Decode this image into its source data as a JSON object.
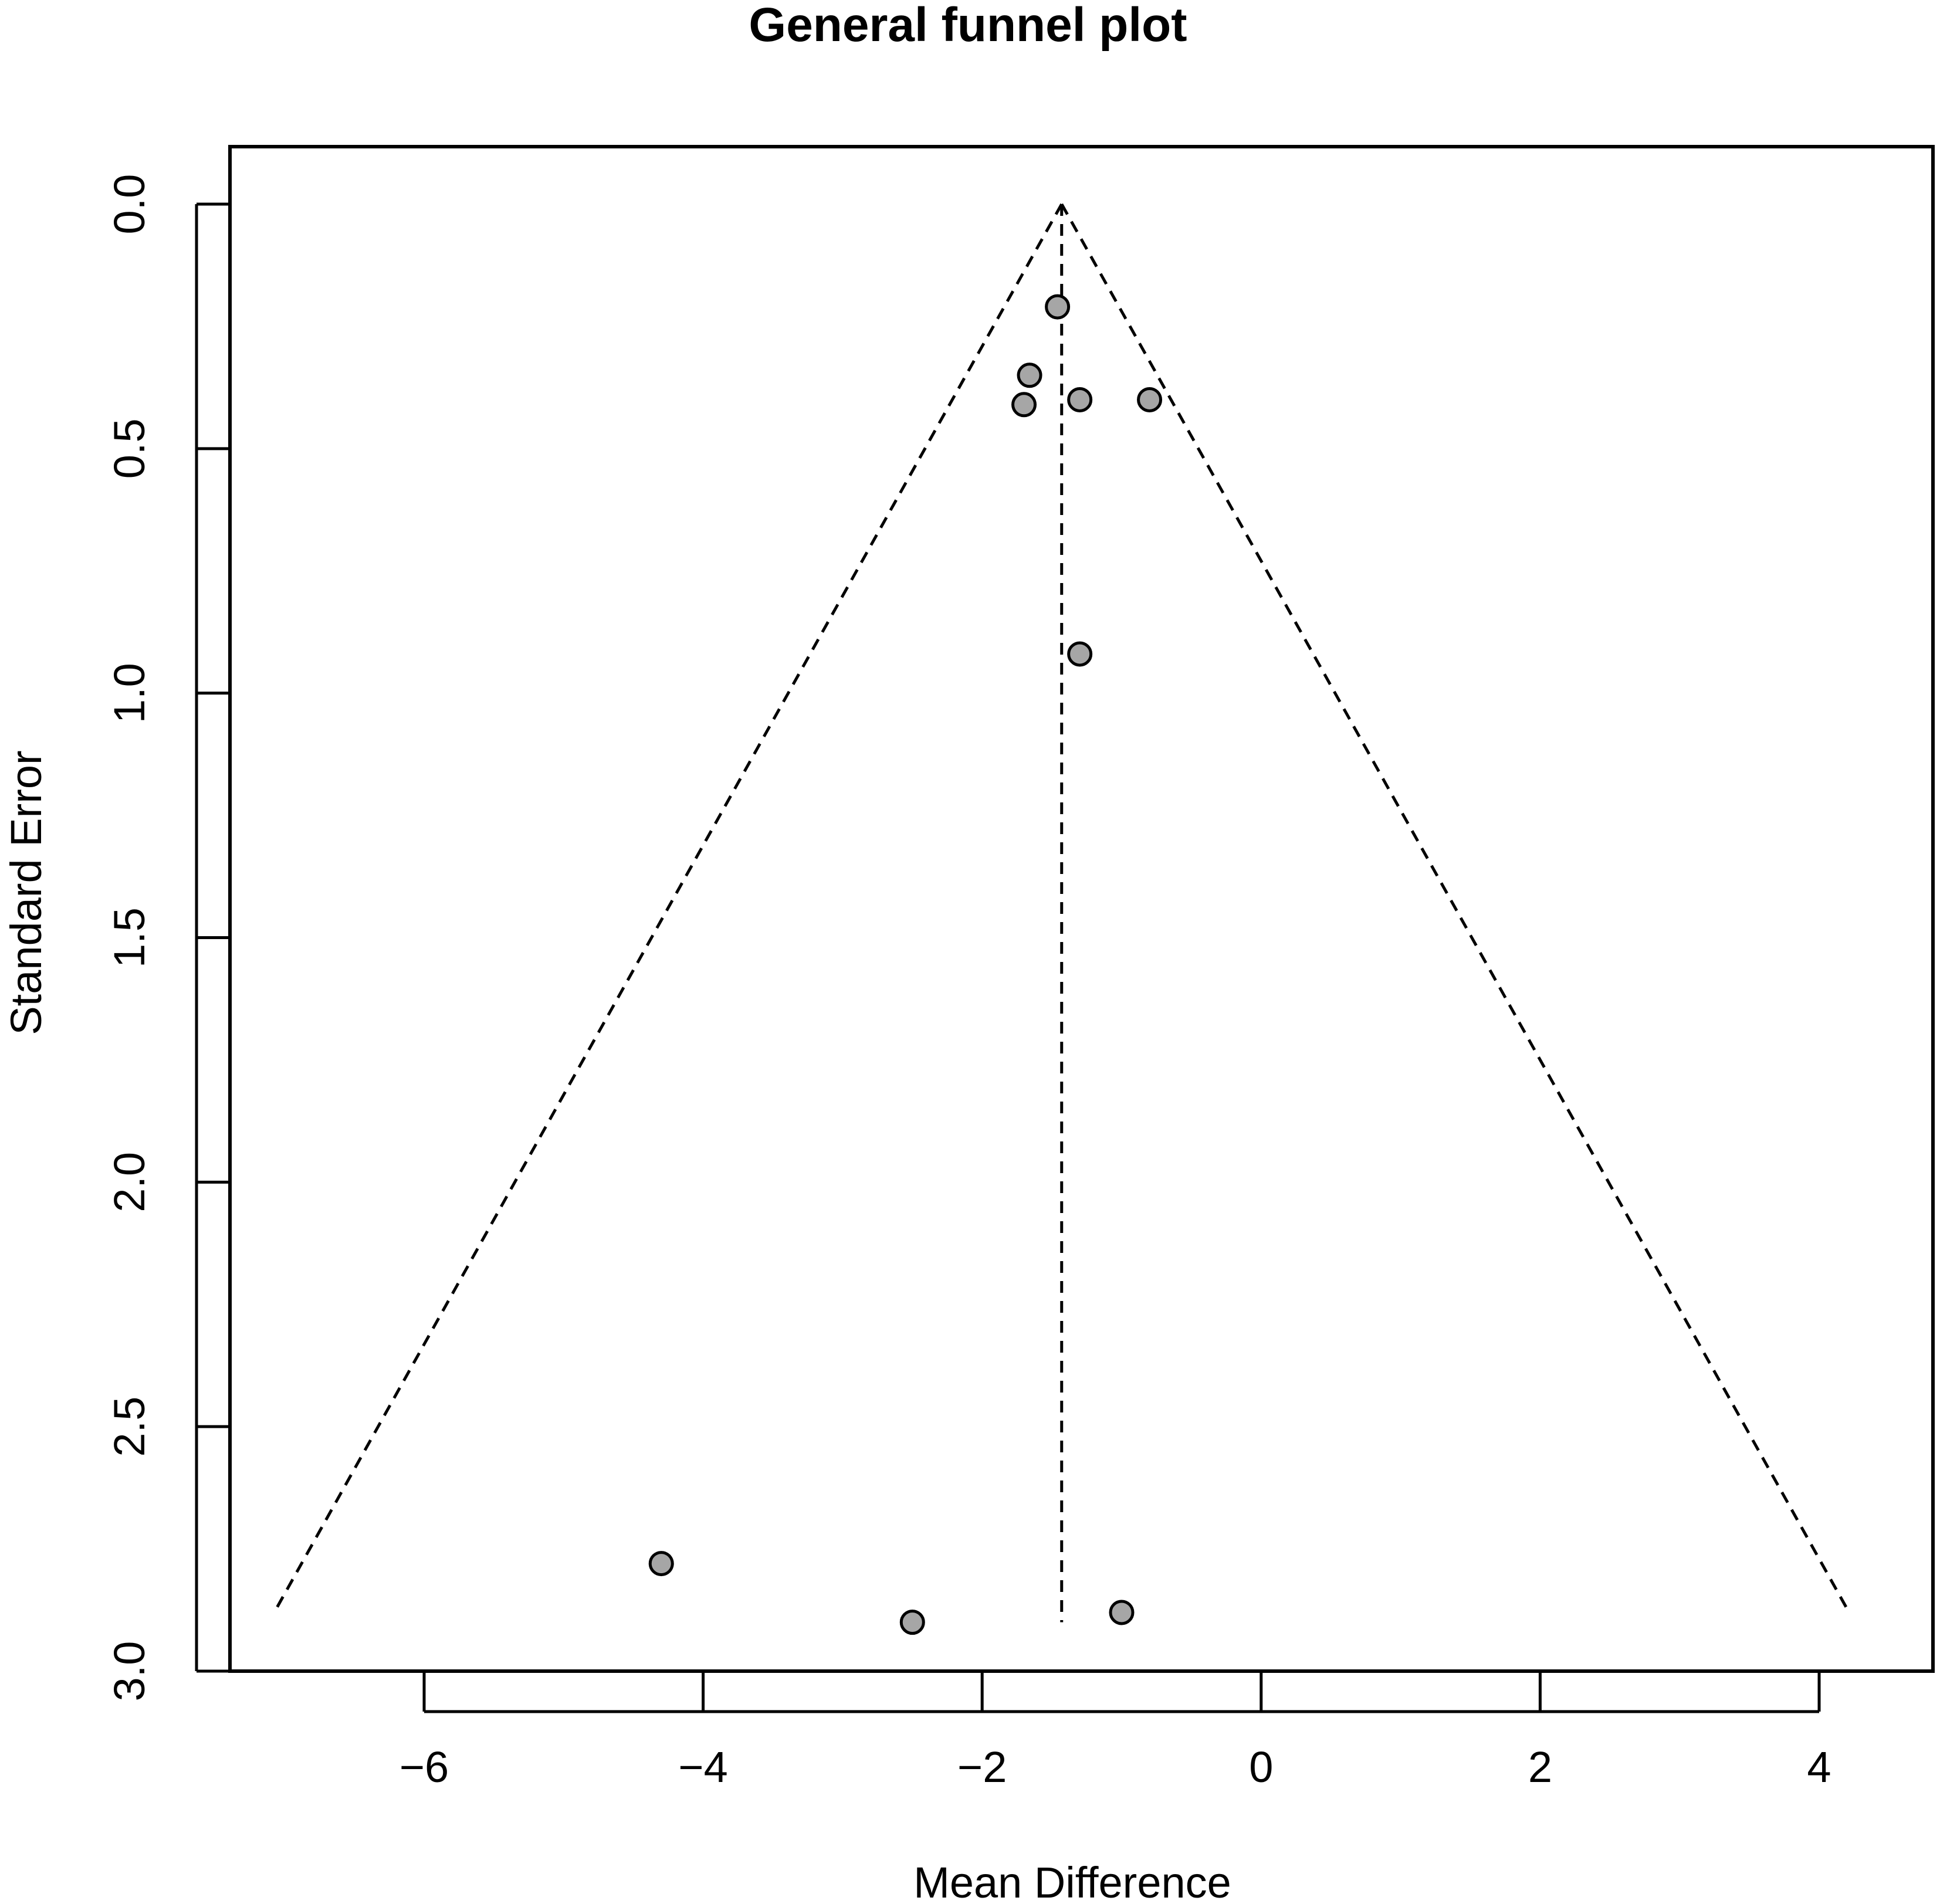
{
  "chart_data": {
    "type": "scatter",
    "subtype": "funnel",
    "title": "General funnel plot",
    "xlabel": "Mean Difference",
    "ylabel": "Standard Error",
    "xlim": [
      -7.4,
      4.6
    ],
    "ylim": [
      3.0,
      0.0
    ],
    "y_reversed": true,
    "xticks": [
      -6,
      -4,
      -2,
      0,
      2,
      4
    ],
    "xtick_labels": [
      "−6",
      "−4",
      "−2",
      "0",
      "2",
      "4"
    ],
    "yticks": [
      0.0,
      0.5,
      1.0,
      1.5,
      2.0,
      2.5,
      3.0
    ],
    "ytick_labels": [
      "0.0",
      "0.5",
      "1.0",
      "1.5",
      "2.0",
      "2.5",
      "3.0"
    ],
    "grid": false,
    "legend": "none",
    "pooled_estimate": -1.43,
    "pseudo_ci_multiplier": 1.96,
    "se_max": 2.88,
    "points": [
      {
        "x": -1.46,
        "y": 0.21
      },
      {
        "x": -1.66,
        "y": 0.35
      },
      {
        "x": -1.7,
        "y": 0.41
      },
      {
        "x": -1.3,
        "y": 0.4
      },
      {
        "x": -0.8,
        "y": 0.4
      },
      {
        "x": -1.3,
        "y": 0.92
      },
      {
        "x": -4.3,
        "y": 2.78
      },
      {
        "x": -2.5,
        "y": 2.9
      },
      {
        "x": -1.0,
        "y": 2.88
      }
    ],
    "point_fill": "#a6a6a6",
    "point_stroke": "#000000",
    "line_color": "#000000"
  }
}
